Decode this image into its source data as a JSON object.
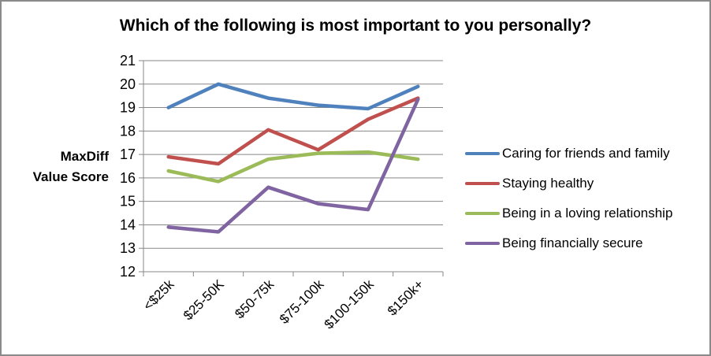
{
  "window": {
    "background": "#ffffff",
    "border_color": "#8a8a8a"
  },
  "chart_data": {
    "type": "line",
    "title": "Which of the following is most important to you personally?",
    "ylabel": "MaxDiff Value Score",
    "ylabel_display": "MaxDiff\nValue Score",
    "xlabel": "",
    "categories": [
      "<$25k",
      "$25-50K",
      "$50-75k",
      "$75-100k",
      "$100-150k",
      "$150k+"
    ],
    "series": [
      {
        "name": "Caring for friends and family",
        "color": "#4F81BD",
        "values": [
          19.0,
          20.0,
          19.4,
          19.1,
          18.95,
          19.9
        ]
      },
      {
        "name": "Staying healthy",
        "color": "#C0504D",
        "values": [
          16.9,
          16.6,
          18.05,
          17.2,
          18.5,
          19.4
        ]
      },
      {
        "name": "Being in a loving relationship",
        "color": "#9BBB59",
        "values": [
          16.3,
          15.85,
          16.8,
          17.05,
          17.1,
          16.8
        ]
      },
      {
        "name": "Being financially secure",
        "color": "#8064A2",
        "values": [
          13.9,
          13.7,
          15.6,
          14.9,
          14.65,
          19.35
        ]
      }
    ],
    "ylim": [
      12,
      21
    ],
    "yticks": [
      12,
      13,
      14,
      15,
      16,
      17,
      18,
      19,
      20,
      21
    ],
    "ytick_step": 1,
    "grid": "horizontal",
    "gridline_color": "#878787",
    "axis_text_color": "#000000",
    "legend_position": "right",
    "line_width": 4.5
  }
}
